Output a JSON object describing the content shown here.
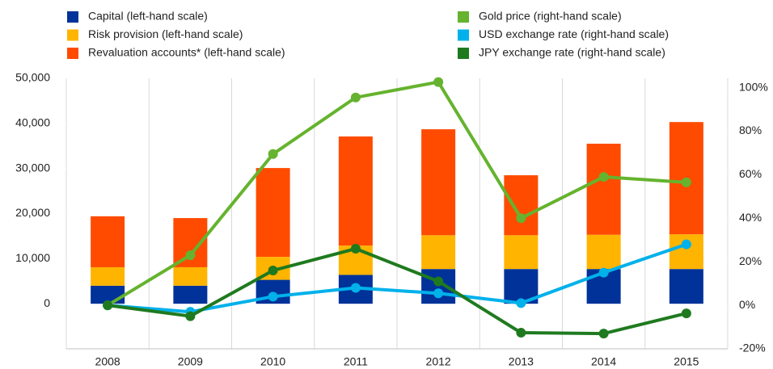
{
  "chart_data": {
    "type": "bar-line",
    "categories": [
      "2008",
      "2009",
      "2010",
      "2011",
      "2012",
      "2013",
      "2014",
      "2015"
    ],
    "series": [
      {
        "name": "Capital (left-hand scale)",
        "type": "bar",
        "axis": "y",
        "color": "#003299",
        "values": [
          4000,
          4000,
          5300,
          6400,
          7700,
          7700,
          7700,
          7700
        ]
      },
      {
        "name": "Risk provision (left-hand scale)",
        "type": "bar",
        "axis": "y",
        "color": "#ffb400",
        "values": [
          4100,
          4100,
          5100,
          6500,
          7500,
          7500,
          7600,
          7700
        ]
      },
      {
        "name": "Revaluation accounts* (left-hand scale)",
        "type": "bar",
        "axis": "y",
        "color": "#ff4b00",
        "values": [
          11300,
          10900,
          19700,
          24200,
          23500,
          13300,
          20200,
          24900
        ]
      },
      {
        "name": "Gold price (right-hand scale)",
        "type": "line",
        "axis": "y2",
        "color": "#65b32e",
        "values": [
          0,
          23,
          69.5,
          95.5,
          102.6,
          40,
          59,
          56.5
        ]
      },
      {
        "name": "USD exchange rate (right-hand scale)",
        "type": "line",
        "axis": "y2",
        "color": "#00b1ea",
        "values": [
          0,
          -3,
          4,
          8,
          5.5,
          1,
          15,
          28
        ]
      },
      {
        "name": "JPY exchange rate (right-hand scale)",
        "type": "line",
        "axis": "y2",
        "color": "#1f7a1f",
        "values": [
          0,
          -5,
          16,
          26,
          11,
          -12.6,
          -13,
          -3.7
        ]
      }
    ],
    "ylim": [
      -10000,
      50000
    ],
    "yticks": [
      0,
      {
        "value": 10000,
        "label": "10,000"
      },
      {
        "value": 20000,
        "label": "20,000"
      },
      {
        "value": 30000,
        "label": "30,000"
      },
      {
        "value": 40000,
        "label": "40,000"
      },
      {
        "value": 50000,
        "label": "50,000"
      }
    ],
    "y2lim": [
      -20,
      104.3
    ],
    "y2ticks": [
      {
        "value": -20,
        "label": "-20%"
      },
      {
        "value": 0,
        "label": "0%"
      },
      {
        "value": 20,
        "label": "20%"
      },
      {
        "value": 40,
        "label": "40%"
      },
      {
        "value": 60,
        "label": "60%"
      },
      {
        "value": 80,
        "label": "80%"
      },
      {
        "value": 100,
        "label": "100%"
      }
    ],
    "grid": true
  }
}
